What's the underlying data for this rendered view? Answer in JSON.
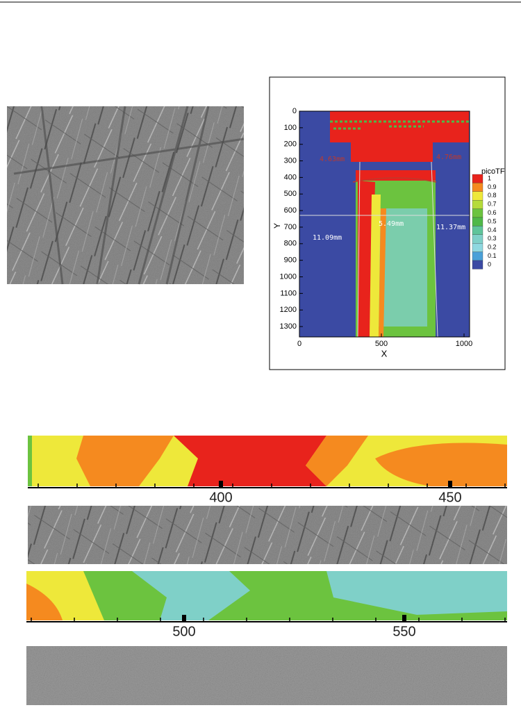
{
  "figure": {
    "contour_plot": {
      "y_ticks": [
        "0",
        "100",
        "200",
        "300",
        "400",
        "500",
        "600",
        "700",
        "800",
        "900",
        "1000",
        "1100",
        "1200",
        "1300"
      ],
      "x_ticks": [
        "0",
        "500",
        "1000"
      ],
      "x_label": "X",
      "y_label": "Y",
      "legend_title": "picoTF",
      "legend_labels": [
        "1",
        "0.9",
        "0.8",
        "0.7",
        "0.6",
        "0.5",
        "0.4",
        "0.3",
        "0.2",
        "0.1",
        "0"
      ],
      "annotations": [
        "11.09mm",
        "5.49mm",
        "11.37mm",
        "4.63mm",
        "4.76mm"
      ]
    },
    "strips": [
      {
        "ticks": [
          "400",
          "450"
        ]
      },
      {
        "ticks": [
          "500",
          "550"
        ]
      }
    ]
  }
}
